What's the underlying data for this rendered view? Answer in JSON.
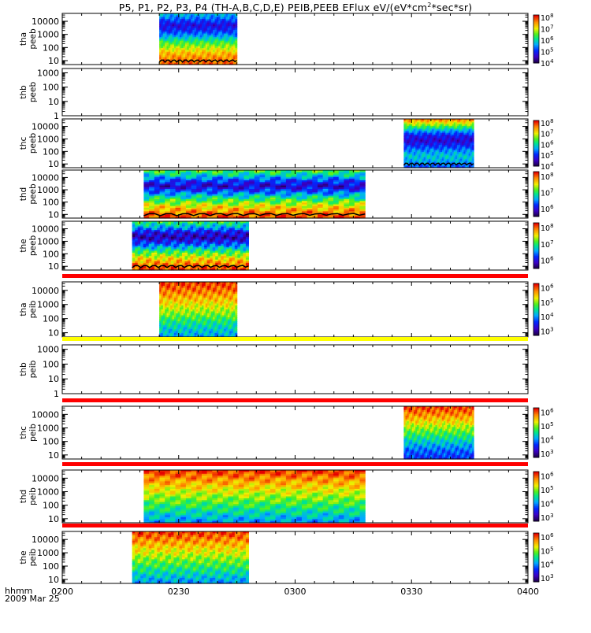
{
  "chart_data": {
    "type": "heatmap",
    "title": {
      "prefix": "P5, P1, P2, P3, P4 (TH-A,B,C,D,E) PEIB,PEEB EFlux eV/(eV*cm",
      "sup": "2",
      "suffix": "*sec*sr)"
    },
    "time_axis": {
      "ticks": [
        "0200",
        "0230",
        "0300",
        "0330",
        "0400"
      ],
      "label": "hhmm",
      "date": "2009 Mar 25",
      "range_min": [
        0,
        120
      ]
    },
    "panels": [
      {
        "line1": "tha",
        "line2": "peeb",
        "yticks": [
          "10",
          "100",
          "1000",
          "10000"
        ],
        "yrange": [
          5,
          40000
        ],
        "data_min": [
          25,
          45
        ],
        "cbar": [
          "10^4",
          "10^5",
          "10^6",
          "10^7",
          "10^8"
        ],
        "cbar_range": [
          4,
          8.2
        ],
        "flux_profile": [
          7.8,
          7.6,
          7.3,
          6.8,
          6.3,
          5.6,
          5.0,
          4.7,
          5.2,
          5.7
        ],
        "bar_above": false,
        "black_trace": true
      },
      {
        "line1": "thb",
        "line2": "peeb",
        "yticks": [
          "1",
          "10",
          "100",
          "1000"
        ],
        "yrange": [
          1,
          2000
        ],
        "data_min": null,
        "cbar": [],
        "bar_above": false,
        "black_trace": false
      },
      {
        "line1": "thc",
        "line2": "peeb",
        "yticks": [
          "10",
          "100",
          "1000",
          "10000"
        ],
        "yrange": [
          5,
          40000
        ],
        "data_min": [
          88,
          106
        ],
        "cbar": [
          "10^4",
          "10^5",
          "10^6",
          "10^7",
          "10^8"
        ],
        "cbar_range": [
          4,
          8.2
        ],
        "flux_profile": [
          5.2,
          5.6,
          5.8,
          5.5,
          5.0,
          4.6,
          4.9,
          5.7,
          6.7,
          7.6
        ],
        "bar_above": false,
        "black_trace": true
      },
      {
        "line1": "thd",
        "line2": "peeb",
        "yticks": [
          "10",
          "100",
          "1000",
          "10000"
        ],
        "yrange": [
          5,
          40000
        ],
        "data_min": [
          21,
          78
        ],
        "cbar": [
          "10^6",
          "10^7",
          "10^8"
        ],
        "cbar_range": [
          5.5,
          8.3
        ],
        "flux_profile": [
          8.1,
          7.9,
          7.6,
          7.2,
          6.8,
          6.3,
          5.9,
          6.2,
          6.7,
          7.1
        ],
        "bar_above": false,
        "black_trace": true
      },
      {
        "line1": "the",
        "line2": "peeb",
        "yticks": [
          "10",
          "100",
          "1000",
          "10000"
        ],
        "yrange": [
          5,
          40000
        ],
        "data_min": [
          18,
          48
        ],
        "cbar": [
          "10^6",
          "10^7",
          "10^8"
        ],
        "cbar_range": [
          5.5,
          8.3
        ],
        "flux_profile": [
          8.1,
          7.9,
          7.6,
          7.2,
          6.7,
          6.2,
          5.8,
          6.0,
          6.6,
          7.0
        ],
        "bar_above": false,
        "black_trace": true
      },
      {
        "line1": "tha",
        "line2": "peib",
        "yticks": [
          "10",
          "100",
          "1000",
          "10000"
        ],
        "yrange": [
          5,
          40000
        ],
        "data_min": [
          25,
          45
        ],
        "cbar": [
          "10^3",
          "10^4",
          "10^5",
          "10^6"
        ],
        "cbar_range": [
          2.7,
          6.3
        ],
        "flux_profile": [
          4.1,
          4.3,
          4.6,
          5.0,
          5.3,
          5.6,
          5.9,
          6.1
        ],
        "bar_above": true,
        "bar_color": "#ff0000",
        "black_trace": false
      },
      {
        "line1": "thb",
        "line2": "peib",
        "yticks": [
          "1",
          "10",
          "100",
          "1000"
        ],
        "yrange": [
          1,
          2000
        ],
        "data_min": null,
        "cbar": [],
        "bar_above": true,
        "bar_color": "#ffff00",
        "black_trace": false
      },
      {
        "line1": "thc",
        "line2": "peib",
        "yticks": [
          "10",
          "100",
          "1000",
          "10000"
        ],
        "yrange": [
          5,
          40000
        ],
        "data_min": [
          88,
          106
        ],
        "cbar": [
          "10^3",
          "10^4",
          "10^5",
          "10^6"
        ],
        "cbar_range": [
          2.7,
          6.3
        ],
        "flux_profile": [
          3.6,
          3.8,
          4.2,
          4.6,
          5.0,
          5.4,
          5.8,
          6.1
        ],
        "bar_above": true,
        "bar_color": "#ff0000",
        "black_trace": false
      },
      {
        "line1": "thd",
        "line2": "peib",
        "yticks": [
          "10",
          "100",
          "1000",
          "10000"
        ],
        "yrange": [
          5,
          40000
        ],
        "data_min": [
          21,
          78
        ],
        "cbar": [
          "10^3",
          "10^4",
          "10^5",
          "10^6"
        ],
        "cbar_range": [
          2.7,
          6.3
        ],
        "flux_profile": [
          4.0,
          4.3,
          4.6,
          4.9,
          5.2,
          5.5,
          5.8,
          6.1
        ],
        "bar_above": true,
        "bar_color": "#ff0000",
        "black_trace": false
      },
      {
        "line1": "the",
        "line2": "peib",
        "yticks": [
          "10",
          "100",
          "1000",
          "10000"
        ],
        "yrange": [
          5,
          40000
        ],
        "data_min": [
          18,
          48
        ],
        "cbar": [
          "10^3",
          "10^4",
          "10^5",
          "10^6"
        ],
        "cbar_range": [
          2.7,
          6.3
        ],
        "flux_profile": [
          4.0,
          4.3,
          4.6,
          4.9,
          5.2,
          5.5,
          5.8,
          6.1
        ],
        "bar_above": true,
        "bar_color": "#ff0000",
        "black_trace": false
      }
    ]
  }
}
